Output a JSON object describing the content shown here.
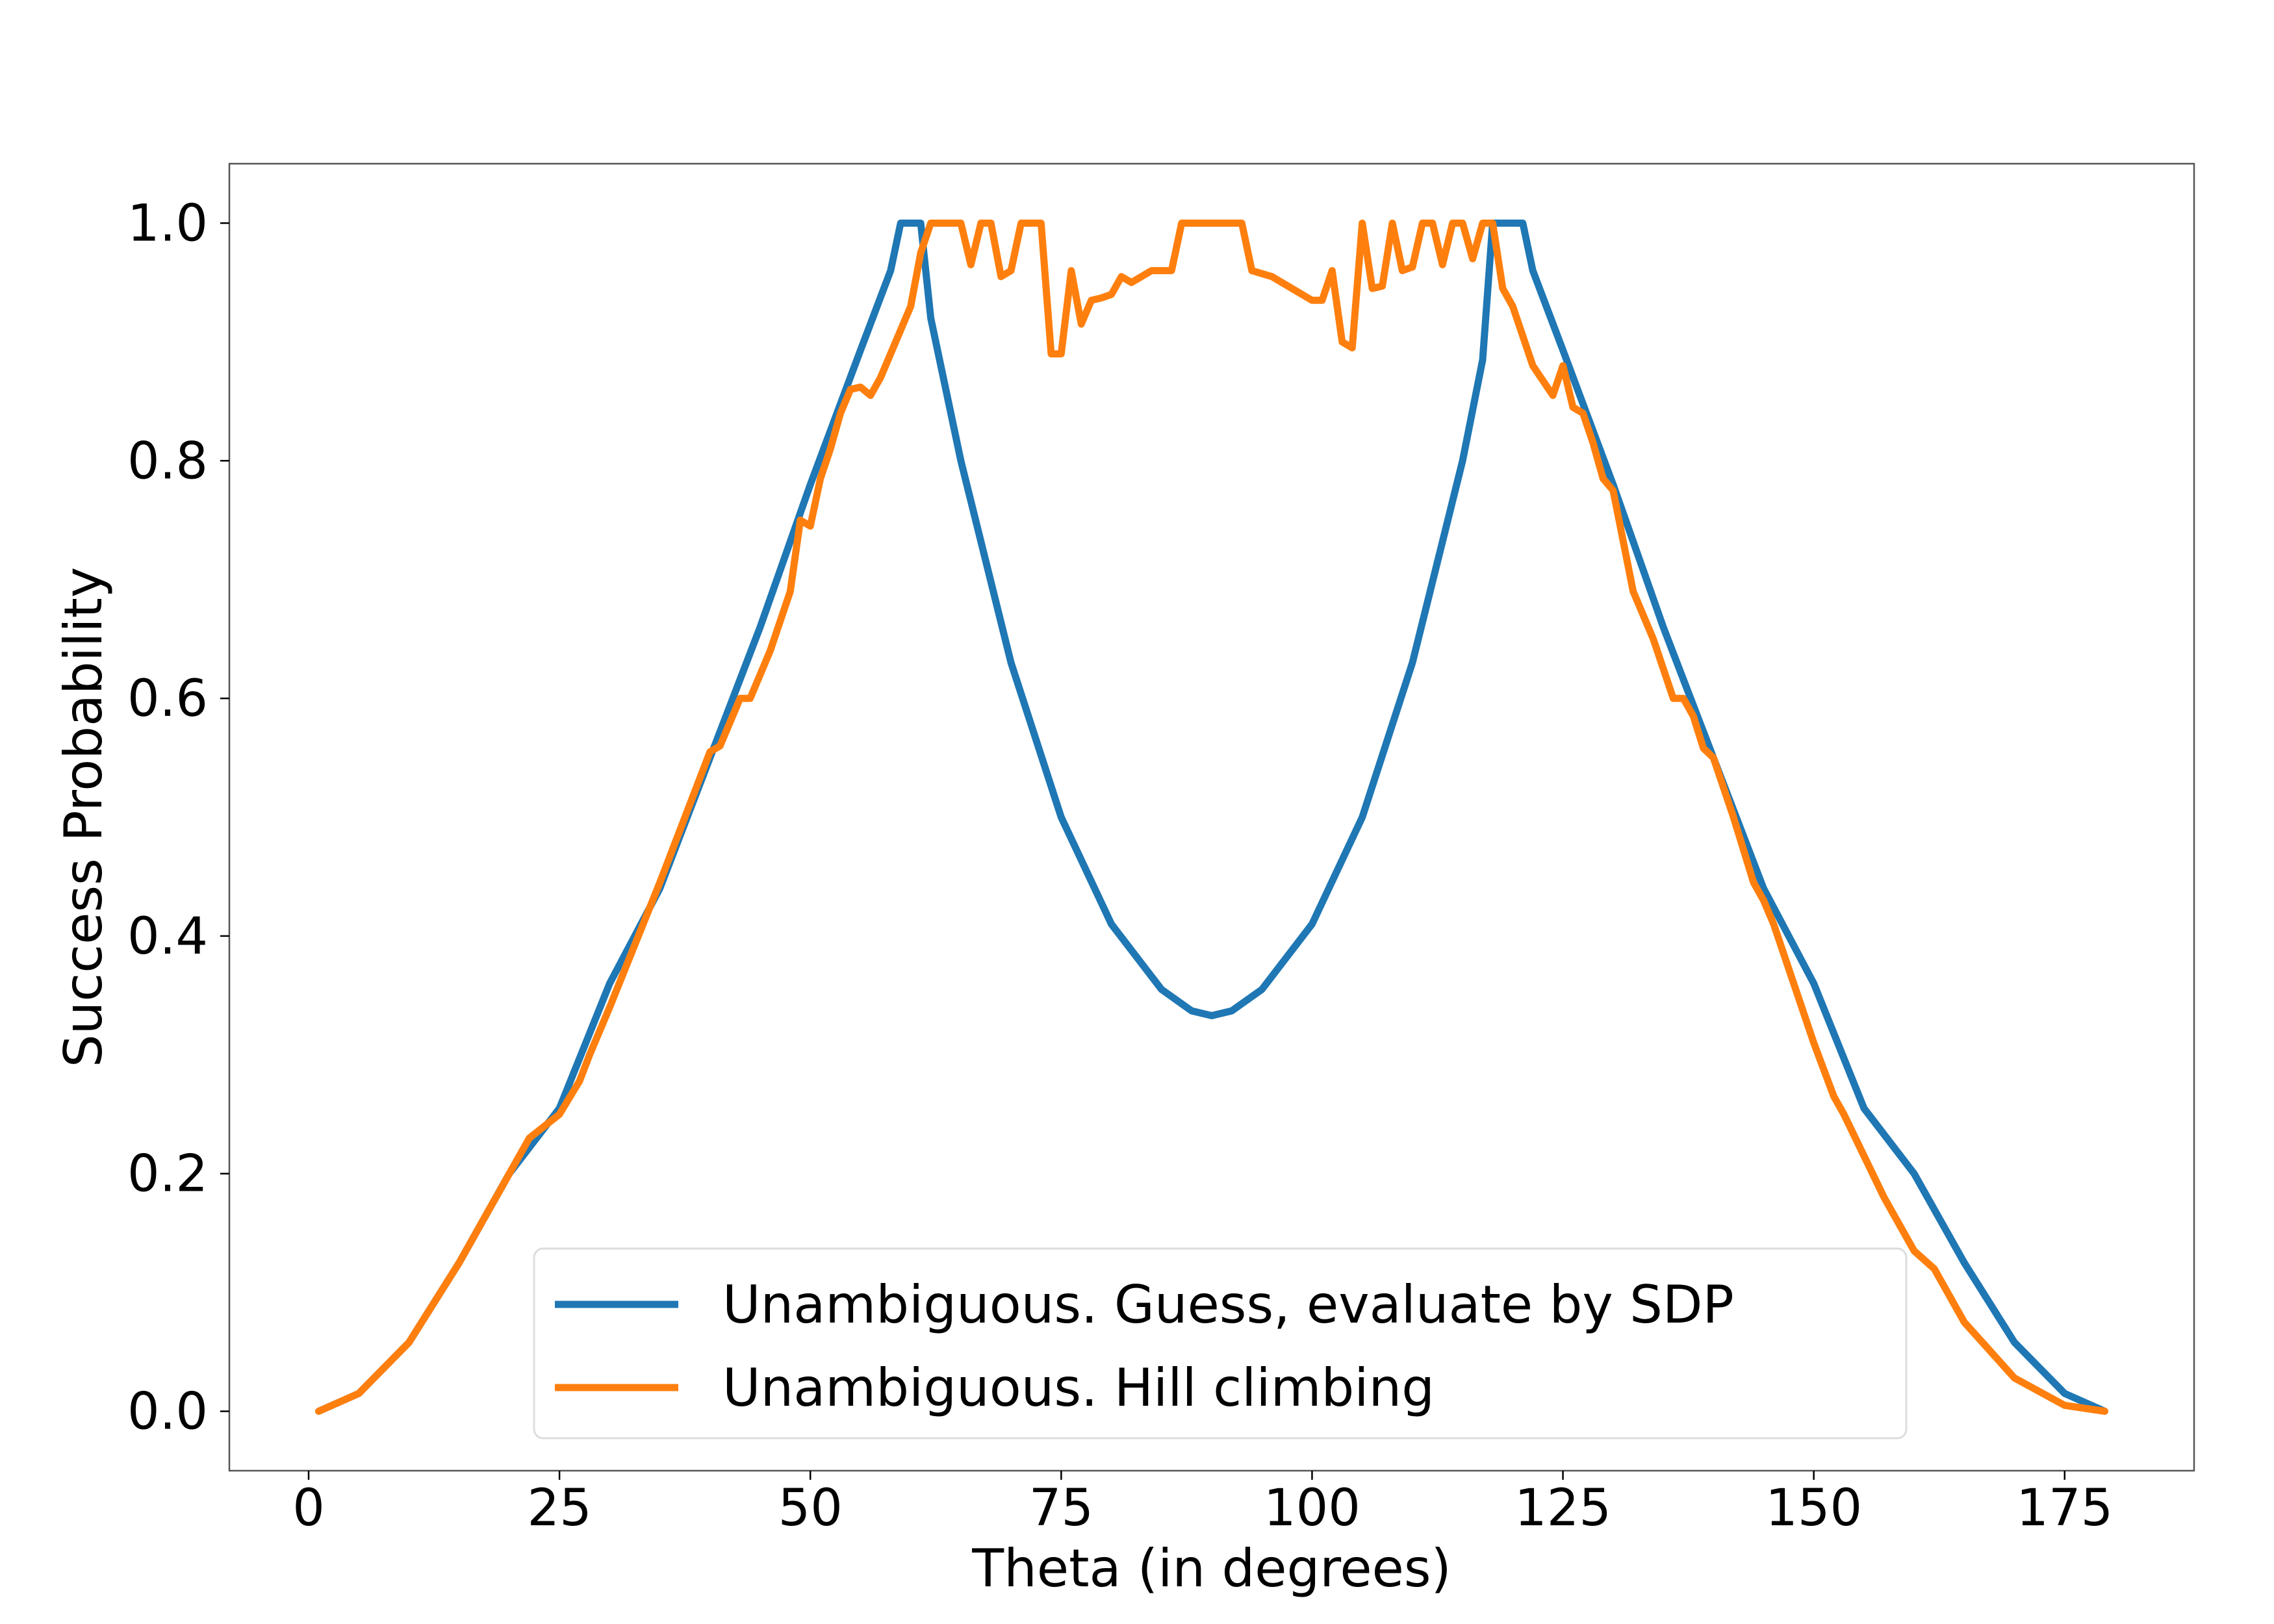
{
  "chart_data": {
    "type": "line",
    "title": "",
    "xlabel": "Theta (in degrees)",
    "ylabel": "Success Probability",
    "xlim": [
      -7.9,
      187.9
    ],
    "ylim": [
      -0.05,
      1.05
    ],
    "xticks": [
      0,
      25,
      50,
      75,
      100,
      125,
      150,
      175
    ],
    "xtick_labels": [
      "0",
      "25",
      "50",
      "75",
      "100",
      "125",
      "150",
      "175"
    ],
    "yticks": [
      0.0,
      0.2,
      0.4,
      0.6,
      0.8,
      1.0
    ],
    "ytick_labels": [
      "0.0",
      "0.2",
      "0.4",
      "0.6",
      "0.8",
      "1.0"
    ],
    "grid": false,
    "legend_position": "lower-center",
    "series": [
      {
        "name": "Unambiguous. Guess, evaluate by SDP",
        "color": "#1f77b4",
        "x": [
          1,
          5,
          10,
          15,
          20,
          25,
          30,
          35,
          40,
          45,
          50,
          55,
          58,
          59,
          60,
          61,
          62,
          65,
          70,
          75,
          80,
          85,
          88,
          90,
          92,
          95,
          100,
          105,
          110,
          115,
          117,
          118,
          119,
          120,
          121,
          122,
          125,
          130,
          135,
          140,
          145,
          150,
          155,
          160,
          165,
          170,
          175,
          179
        ],
        "y": [
          0.0,
          0.015,
          0.058,
          0.125,
          0.2,
          0.255,
          0.36,
          0.44,
          0.55,
          0.66,
          0.78,
          0.893,
          0.96,
          1.0,
          1.0,
          1.0,
          0.92,
          0.8,
          0.63,
          0.5,
          0.41,
          0.355,
          0.337,
          0.333,
          0.337,
          0.355,
          0.41,
          0.5,
          0.63,
          0.8,
          0.885,
          1.0,
          1.0,
          1.0,
          1.0,
          0.96,
          0.893,
          0.78,
          0.66,
          0.55,
          0.44,
          0.36,
          0.255,
          0.2,
          0.125,
          0.058,
          0.015,
          0.0
        ]
      },
      {
        "name": "Unambiguous. Hill climbing",
        "color": "#ff7f0e",
        "x": [
          1,
          5,
          10,
          15,
          18,
          19,
          20,
          22,
          25,
          27,
          28,
          30,
          35,
          40,
          41,
          43,
          44,
          46,
          48,
          49,
          50,
          51,
          52,
          53,
          54,
          55,
          56,
          57,
          60,
          61,
          62,
          63,
          65,
          66,
          67,
          68,
          69,
          70,
          71,
          72,
          73,
          74,
          75,
          76,
          77,
          78,
          79,
          80,
          81,
          82,
          83,
          84,
          86,
          87,
          88,
          90,
          92,
          93,
          94,
          96,
          98,
          100,
          101,
          102,
          103,
          104,
          105,
          106,
          107,
          108,
          109,
          110,
          111,
          112,
          113,
          114,
          115,
          116,
          117,
          118,
          119,
          120,
          122,
          124,
          125,
          126,
          127,
          128,
          129,
          130,
          132,
          134,
          136,
          137,
          138,
          139,
          140,
          142,
          144,
          145,
          146,
          148,
          150,
          152,
          153,
          155,
          157,
          159,
          160,
          162,
          165,
          170,
          175,
          179
        ],
        "y": [
          0.0,
          0.015,
          0.058,
          0.125,
          0.17,
          0.185,
          0.2,
          0.23,
          0.25,
          0.278,
          0.3,
          0.34,
          0.445,
          0.555,
          0.56,
          0.6,
          0.6,
          0.64,
          0.69,
          0.75,
          0.745,
          0.785,
          0.81,
          0.84,
          0.86,
          0.862,
          0.855,
          0.87,
          0.93,
          0.975,
          1.0,
          1.0,
          1.0,
          0.965,
          1.0,
          1.0,
          0.955,
          0.96,
          1.0,
          1.0,
          1.0,
          0.89,
          0.89,
          0.96,
          0.915,
          0.935,
          0.937,
          0.94,
          0.955,
          0.95,
          0.955,
          0.96,
          0.96,
          1.0,
          1.0,
          1.0,
          1.0,
          1.0,
          0.96,
          0.955,
          0.945,
          0.935,
          0.935,
          0.96,
          0.9,
          0.895,
          1.0,
          0.945,
          0.947,
          1.0,
          0.96,
          0.963,
          1.0,
          1.0,
          0.965,
          1.0,
          1.0,
          0.97,
          1.0,
          1.0,
          0.945,
          0.93,
          0.88,
          0.855,
          0.88,
          0.845,
          0.84,
          0.815,
          0.785,
          0.775,
          0.69,
          0.65,
          0.6,
          0.6,
          0.585,
          0.558,
          0.55,
          0.5,
          0.445,
          0.43,
          0.41,
          0.36,
          0.31,
          0.265,
          0.25,
          0.215,
          0.18,
          0.15,
          0.135,
          0.12,
          0.075,
          0.028,
          0.005,
          0.0
        ]
      }
    ]
  }
}
